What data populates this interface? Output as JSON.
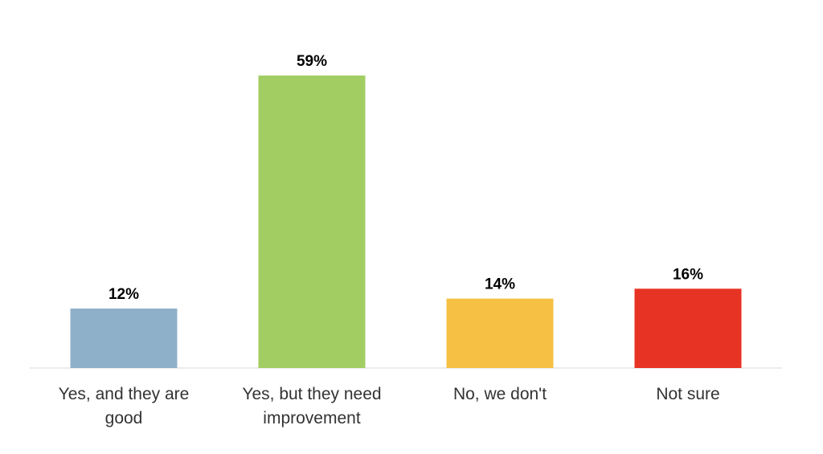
{
  "chart_data": {
    "type": "bar",
    "categories": [
      "Yes, and they are good",
      "Yes, but they need improvement",
      "No, we don't",
      "Not sure"
    ],
    "values": [
      12,
      59,
      14,
      16
    ],
    "value_labels": [
      "12%",
      "59%",
      "14%",
      "16%"
    ],
    "colors": [
      "#8fb0c9",
      "#a2cd62",
      "#f5c044",
      "#e73323"
    ]
  }
}
